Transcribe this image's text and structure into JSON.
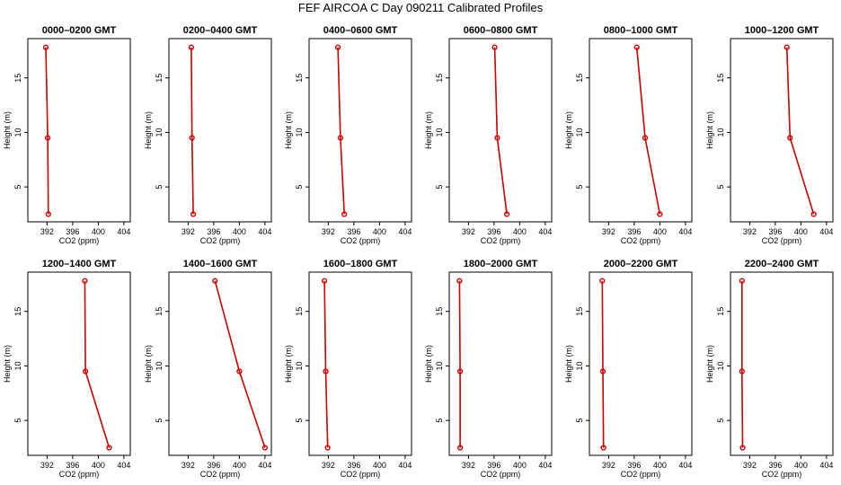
{
  "title": "FEF AIRCOA C  Day 090211  Calibrated Profiles",
  "colors": {
    "series": "#cc0000",
    "axis": "#000000"
  },
  "chart_data": [
    {
      "type": "line",
      "title": "0000–0200 GMT",
      "xlabel": "CO2 (ppm)",
      "ylabel": "Height (m)",
      "xlim": [
        389,
        405
      ],
      "ylim": [
        1.8,
        18.6
      ],
      "xticks": [
        "392",
        "396",
        "400",
        "404"
      ],
      "yticks": [
        "5",
        "10",
        "15"
      ],
      "x": [
        392.2,
        392.1,
        391.8
      ],
      "y": [
        2.5,
        9.5,
        17.8
      ]
    },
    {
      "type": "line",
      "title": "0200–0400 GMT",
      "xlabel": "CO2 (ppm)",
      "ylabel": "Height (m)",
      "xlim": [
        389,
        405
      ],
      "ylim": [
        1.8,
        18.6
      ],
      "xticks": [
        "392",
        "396",
        "400",
        "404"
      ],
      "yticks": [
        "5",
        "10",
        "15"
      ],
      "x": [
        392.8,
        392.6,
        392.5
      ],
      "y": [
        2.5,
        9.5,
        17.8
      ]
    },
    {
      "type": "line",
      "title": "0400–0600 GMT",
      "xlabel": "CO2 (ppm)",
      "ylabel": "Height (m)",
      "xlim": [
        389,
        405
      ],
      "ylim": [
        1.8,
        18.6
      ],
      "xticks": [
        "392",
        "396",
        "400",
        "404"
      ],
      "yticks": [
        "5",
        "10",
        "15"
      ],
      "x": [
        394.5,
        393.9,
        393.5
      ],
      "y": [
        2.5,
        9.5,
        17.8
      ]
    },
    {
      "type": "line",
      "title": "0600–0800 GMT",
      "xlabel": "CO2 (ppm)",
      "ylabel": "Height (m)",
      "xlim": [
        389,
        405
      ],
      "ylim": [
        1.8,
        18.6
      ],
      "xticks": [
        "392",
        "396",
        "400",
        "404"
      ],
      "yticks": [
        "5",
        "10",
        "15"
      ],
      "x": [
        398.0,
        396.5,
        396.1
      ],
      "y": [
        2.5,
        9.5,
        17.8
      ]
    },
    {
      "type": "line",
      "title": "0800–1000 GMT",
      "xlabel": "CO2 (ppm)",
      "ylabel": "Height (m)",
      "xlim": [
        389,
        405
      ],
      "ylim": [
        1.8,
        18.6
      ],
      "xticks": [
        "392",
        "396",
        "400",
        "404"
      ],
      "yticks": [
        "5",
        "10",
        "15"
      ],
      "x": [
        400.0,
        397.7,
        396.4
      ],
      "y": [
        2.5,
        9.5,
        17.8
      ]
    },
    {
      "type": "line",
      "title": "1000–1200 GMT",
      "xlabel": "CO2 (ppm)",
      "ylabel": "Height (m)",
      "xlim": [
        389,
        405
      ],
      "ylim": [
        1.8,
        18.6
      ],
      "xticks": [
        "392",
        "396",
        "400",
        "404"
      ],
      "yticks": [
        "5",
        "10",
        "15"
      ],
      "x": [
        402.0,
        398.3,
        397.8
      ],
      "y": [
        2.5,
        9.5,
        17.8
      ]
    },
    {
      "type": "line",
      "title": "1200–1400 GMT",
      "xlabel": "CO2 (ppm)",
      "ylabel": "Height (m)",
      "xlim": [
        389,
        405
      ],
      "ylim": [
        1.8,
        18.6
      ],
      "xticks": [
        "392",
        "396",
        "400",
        "404"
      ],
      "yticks": [
        "5",
        "10",
        "15"
      ],
      "x": [
        401.7,
        398.0,
        397.9
      ],
      "y": [
        2.5,
        9.5,
        17.8
      ]
    },
    {
      "type": "line",
      "title": "1400–1600 GMT",
      "xlabel": "CO2 (ppm)",
      "ylabel": "Height (m)",
      "xlim": [
        389,
        405
      ],
      "ylim": [
        1.8,
        18.6
      ],
      "xticks": [
        "392",
        "396",
        "400",
        "404"
      ],
      "yticks": [
        "5",
        "10",
        "15"
      ],
      "x": [
        404.0,
        400.0,
        396.2
      ],
      "y": [
        2.5,
        9.5,
        17.8
      ]
    },
    {
      "type": "line",
      "title": "1600–1800 GMT",
      "xlabel": "CO2 (ppm)",
      "ylabel": "Height (m)",
      "xlim": [
        389,
        405
      ],
      "ylim": [
        1.8,
        18.6
      ],
      "xticks": [
        "392",
        "396",
        "400",
        "404"
      ],
      "yticks": [
        "5",
        "10",
        "15"
      ],
      "x": [
        391.9,
        391.6,
        391.4
      ],
      "y": [
        2.5,
        9.5,
        17.8
      ]
    },
    {
      "type": "line",
      "title": "1800–2000 GMT",
      "xlabel": "CO2 (ppm)",
      "ylabel": "Height (m)",
      "xlim": [
        389,
        405
      ],
      "ylim": [
        1.8,
        18.6
      ],
      "xticks": [
        "392",
        "396",
        "400",
        "404"
      ],
      "yticks": [
        "5",
        "10",
        "15"
      ],
      "x": [
        390.7,
        390.7,
        390.6
      ],
      "y": [
        2.5,
        9.5,
        17.8
      ]
    },
    {
      "type": "line",
      "title": "2000–2200 GMT",
      "xlabel": "CO2 (ppm)",
      "ylabel": "Height (m)",
      "xlim": [
        389,
        405
      ],
      "ylim": [
        1.8,
        18.6
      ],
      "xticks": [
        "392",
        "396",
        "400",
        "404"
      ],
      "yticks": [
        "5",
        "10",
        "15"
      ],
      "x": [
        391.2,
        391.1,
        391.0
      ],
      "y": [
        2.5,
        9.5,
        17.8
      ]
    },
    {
      "type": "line",
      "title": "2200–2400 GMT",
      "xlabel": "CO2 (ppm)",
      "ylabel": "Height (m)",
      "xlim": [
        389,
        405
      ],
      "ylim": [
        1.8,
        18.6
      ],
      "xticks": [
        "392",
        "396",
        "400",
        "404"
      ],
      "yticks": [
        "5",
        "10",
        "15"
      ],
      "x": [
        390.9,
        390.8,
        390.8
      ],
      "y": [
        2.5,
        9.5,
        17.8
      ]
    }
  ]
}
